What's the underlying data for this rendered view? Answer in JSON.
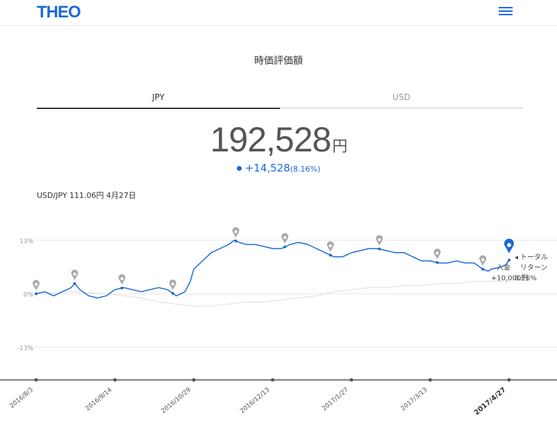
{
  "header": {
    "logo": "THEO",
    "menu_icon": "hamburger-menu-icon"
  },
  "title": "時価評価額",
  "tabs": [
    {
      "label": "JPY",
      "active": true
    },
    {
      "label": "USD",
      "active": false
    }
  ],
  "total": {
    "value": "192,528",
    "unit": "円"
  },
  "change": {
    "amount": "+14,528",
    "percent": "(8.16%)"
  },
  "fx_rate": "USD/JPY 111.06円 4月27日",
  "colors": {
    "accent": "#1a6ad6",
    "benchmark": "#e8e8ea",
    "marker": "#aaaaaa"
  },
  "tooltip": {
    "line1": "トータル",
    "line2": "入金",
    "line3": "リターン",
    "line4": "+10,000円",
    "line5": "8.16%"
  },
  "chart_data": {
    "type": "line",
    "ylabel_ticks": [
      "13%",
      "0%",
      "-13%"
    ],
    "ylim": [
      -21,
      15
    ],
    "x_ticks": [
      "2016/8/3",
      "2016/9/14",
      "2016/10/29",
      "2016/12/13",
      "2017/1/27",
      "2017/3/13",
      "2017/4/27"
    ],
    "series": [
      {
        "x": [
          0,
          5,
          10,
          15,
          20,
          22,
          25,
          30,
          35,
          40,
          45,
          50,
          55,
          60,
          65,
          70,
          75,
          80,
          85,
          88,
          90,
          95,
          100,
          105,
          110,
          113,
          116,
          120,
          125,
          130,
          135,
          140,
          145,
          150,
          155,
          160,
          165,
          170,
          175,
          180,
          185,
          190,
          195,
          200,
          205,
          210,
          215,
          220,
          225,
          230,
          235,
          240,
          245,
          250,
          255,
          258,
          260,
          265,
          268,
          270
        ],
        "y": [
          0,
          0.5,
          -0.5,
          0.5,
          1.5,
          2.5,
          1,
          -0.5,
          -1,
          -0.5,
          1,
          1.5,
          1,
          0.5,
          1,
          1.5,
          1,
          -0.5,
          0.5,
          3,
          6,
          8,
          10,
          11,
          12,
          13,
          12.5,
          12,
          12,
          11.5,
          11,
          11,
          12,
          12.5,
          12,
          11,
          10,
          9,
          9,
          10,
          10.5,
          11,
          11,
          10.5,
          10,
          10,
          9,
          8,
          8,
          7.5,
          7.5,
          8,
          7.5,
          7.5,
          6,
          5.5,
          6,
          6.5,
          7,
          8.2
        ]
      },
      {
        "x": [
          0,
          20,
          40,
          60,
          70,
          80,
          90,
          100,
          110,
          120,
          130,
          140,
          150,
          160,
          170,
          180,
          190,
          200,
          210,
          220,
          230,
          240,
          250,
          260,
          270
        ],
        "y": [
          0,
          0.5,
          0,
          -1,
          -2,
          -2.5,
          -3,
          -3,
          -2.5,
          -2,
          -2,
          -1.5,
          -1,
          -0.5,
          0.5,
          1,
          1.5,
          1.5,
          2,
          2,
          2.5,
          2.5,
          3,
          3,
          3
        ]
      }
    ],
    "events_x": [
      0,
      22,
      49,
      78,
      114,
      142,
      168,
      196,
      229,
      255,
      270
    ]
  }
}
